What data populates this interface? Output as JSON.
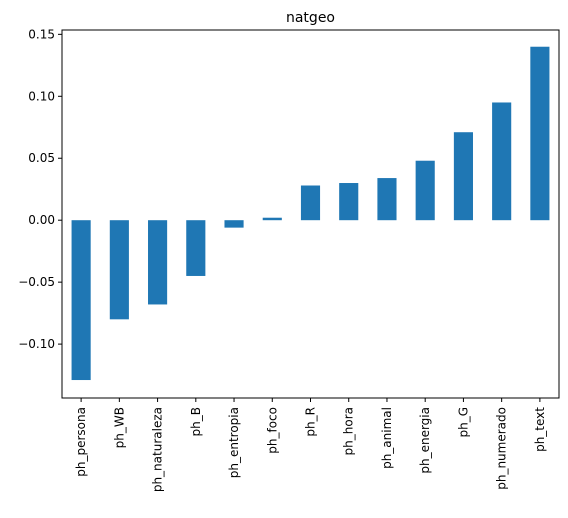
{
  "chart_data": {
    "type": "bar",
    "title": "natgeo",
    "xlabel": "",
    "ylabel": "",
    "categories": [
      "ph_persona",
      "ph_WB",
      "ph_naturaleza",
      "ph_B",
      "ph_entropia",
      "ph_foco",
      "ph_R",
      "ph_hora",
      "ph_animal",
      "ph_energia",
      "ph_G",
      "ph_numerado",
      "ph_text"
    ],
    "values": [
      -0.129,
      -0.08,
      -0.068,
      -0.045,
      -0.006,
      0.002,
      0.028,
      0.03,
      0.034,
      0.048,
      0.071,
      0.095,
      0.14
    ],
    "ylim": [
      -0.1435,
      0.1535
    ],
    "yticks": [
      0.15,
      0.1,
      0.05,
      0.0,
      -0.05,
      -0.1
    ],
    "ytick_labels": [
      "0.15",
      "0.10",
      "0.05",
      "0.00",
      "−0.05",
      "−0.10"
    ],
    "grid": false,
    "legend": "none",
    "bar_color": "#1f77b4"
  }
}
